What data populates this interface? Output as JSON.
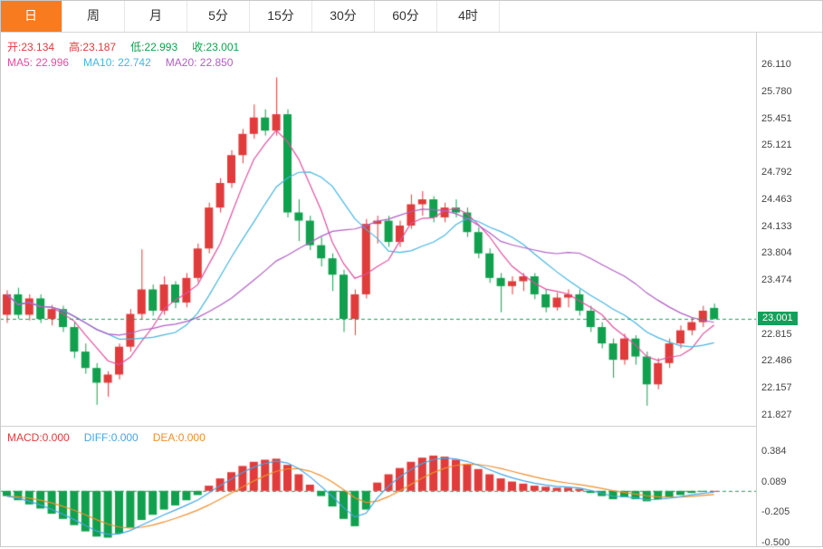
{
  "tabs": [
    {
      "label": "日",
      "active": true
    },
    {
      "label": "周",
      "active": false
    },
    {
      "label": "月",
      "active": false
    },
    {
      "label": "5分",
      "active": false
    },
    {
      "label": "15分",
      "active": false
    },
    {
      "label": "30分",
      "active": false
    },
    {
      "label": "60分",
      "active": false
    },
    {
      "label": "4时",
      "active": false
    }
  ],
  "ohlc_row": [
    {
      "text": "开:23.134",
      "color": "#e13b3b"
    },
    {
      "text": "高:23.187",
      "color": "#e13b3b"
    },
    {
      "text": "低:22.993",
      "color": "#11a04e"
    },
    {
      "text": "收:23.001",
      "color": "#11a04e"
    }
  ],
  "ma_row": [
    {
      "text": "MA5: 22.996",
      "color": "#e24f9f"
    },
    {
      "text": "MA10: 22.742",
      "color": "#45b6e0"
    },
    {
      "text": "MA20: 22.850",
      "color": "#b05fc5"
    }
  ],
  "macd_row": [
    {
      "text": "MACD:0.000",
      "color": "#e13b3b"
    },
    {
      "text": "DIFF:0.000",
      "color": "#45a6e8"
    },
    {
      "text": "DEA:0.000",
      "color": "#f08f2a"
    }
  ],
  "price_tag": {
    "text": "23.001",
    "bg": "#14a05a"
  },
  "colors": {
    "up": "#e13b3b",
    "down": "#11a04e",
    "ma5": "#e24f9f",
    "ma10": "#45b6e0",
    "ma20": "#b05fc5",
    "diff": "#45a6e8",
    "dea": "#f08f2a",
    "dashed": "#14a05a",
    "tab_active_bg": "#f87b20"
  },
  "chart_data": [
    {
      "type": "candlestick",
      "title": "日K线 (Daily candlestick)",
      "ohlc_last": {
        "open": 23.134,
        "high": 23.187,
        "low": 22.993,
        "close": 23.001
      },
      "ma_values": {
        "MA5": 22.996,
        "MA10": 22.742,
        "MA20": 22.85
      },
      "current_price_line": 23.001,
      "y_ticks": [
        26.11,
        25.78,
        25.451,
        25.121,
        24.792,
        24.463,
        24.133,
        23.804,
        23.474,
        22.815,
        22.486,
        22.157,
        21.827
      ],
      "y_range": [
        21.694,
        26.497
      ],
      "candles": [
        [
          23.05,
          23.35,
          22.95,
          23.3
        ],
        [
          23.3,
          23.38,
          23.0,
          23.05
        ],
        [
          23.05,
          23.3,
          22.98,
          23.25
        ],
        [
          23.25,
          23.3,
          22.95,
          23.0
        ],
        [
          23.0,
          23.17,
          22.92,
          23.12
        ],
        [
          23.12,
          23.16,
          22.84,
          22.9
        ],
        [
          22.9,
          22.96,
          22.52,
          22.6
        ],
        [
          22.6,
          22.7,
          22.33,
          22.4
        ],
        [
          22.4,
          22.46,
          21.95,
          22.22
        ],
        [
          22.22,
          22.36,
          22.05,
          22.32
        ],
        [
          22.32,
          22.7,
          22.26,
          22.66
        ],
        [
          22.66,
          23.12,
          22.6,
          23.06
        ],
        [
          23.06,
          23.85,
          23.0,
          23.36
        ],
        [
          23.36,
          23.42,
          23.04,
          23.1
        ],
        [
          23.1,
          23.52,
          23.05,
          23.42
        ],
        [
          23.42,
          23.46,
          23.13,
          23.2
        ],
        [
          23.2,
          23.56,
          23.14,
          23.5
        ],
        [
          23.5,
          23.92,
          23.45,
          23.86
        ],
        [
          23.86,
          24.42,
          23.8,
          24.36
        ],
        [
          24.36,
          24.72,
          24.3,
          24.66
        ],
        [
          24.66,
          25.06,
          24.6,
          25.0
        ],
        [
          25.0,
          25.32,
          24.9,
          25.26
        ],
        [
          25.26,
          25.62,
          25.2,
          25.46
        ],
        [
          25.46,
          25.56,
          25.24,
          25.3
        ],
        [
          25.3,
          25.95,
          25.24,
          25.5
        ],
        [
          25.5,
          25.56,
          24.24,
          24.3
        ],
        [
          24.3,
          24.46,
          23.95,
          24.2
        ],
        [
          24.2,
          24.26,
          23.84,
          23.9
        ],
        [
          23.9,
          24.0,
          23.64,
          23.74
        ],
        [
          23.74,
          23.8,
          23.34,
          23.54
        ],
        [
          23.54,
          23.6,
          22.84,
          23.0
        ],
        [
          23.0,
          23.36,
          22.8,
          23.3
        ],
        [
          23.3,
          24.22,
          23.25,
          24.16
        ],
        [
          24.16,
          24.26,
          23.92,
          24.2
        ],
        [
          24.2,
          24.26,
          23.88,
          23.94
        ],
        [
          23.94,
          24.2,
          23.88,
          24.14
        ],
        [
          24.14,
          24.52,
          24.1,
          24.4
        ],
        [
          24.4,
          24.56,
          24.26,
          24.46
        ],
        [
          24.46,
          24.5,
          24.18,
          24.24
        ],
        [
          24.24,
          24.42,
          24.18,
          24.36
        ],
        [
          24.36,
          24.46,
          24.24,
          24.3
        ],
        [
          24.3,
          24.36,
          24.0,
          24.06
        ],
        [
          24.06,
          24.12,
          23.74,
          23.8
        ],
        [
          23.8,
          23.86,
          23.44,
          23.5
        ],
        [
          23.5,
          23.56,
          23.08,
          23.4
        ],
        [
          23.4,
          23.52,
          23.3,
          23.46
        ],
        [
          23.46,
          23.56,
          23.34,
          23.52
        ],
        [
          23.52,
          23.56,
          23.24,
          23.3
        ],
        [
          23.3,
          23.36,
          23.08,
          23.14
        ],
        [
          23.14,
          23.32,
          23.1,
          23.26
        ],
        [
          23.26,
          23.36,
          23.14,
          23.3
        ],
        [
          23.3,
          23.36,
          23.04,
          23.1
        ],
        [
          23.1,
          23.16,
          22.84,
          22.9
        ],
        [
          22.9,
          22.96,
          22.64,
          22.7
        ],
        [
          22.7,
          22.76,
          22.28,
          22.5
        ],
        [
          22.5,
          22.82,
          22.44,
          22.76
        ],
        [
          22.76,
          22.8,
          22.44,
          22.54
        ],
        [
          22.54,
          22.6,
          21.94,
          22.2
        ],
        [
          22.2,
          22.52,
          22.14,
          22.46
        ],
        [
          22.46,
          22.76,
          22.4,
          22.7
        ],
        [
          22.7,
          22.92,
          22.64,
          22.86
        ],
        [
          22.86,
          23.02,
          22.8,
          22.96
        ],
        [
          22.96,
          23.16,
          22.9,
          23.1
        ],
        [
          23.134,
          23.187,
          22.993,
          23.001
        ]
      ]
    },
    {
      "type": "bar",
      "name": "MACD",
      "header_values": {
        "MACD": 0.0,
        "DIFF": 0.0,
        "DEA": 0.0
      },
      "y_ticks": [
        0.384,
        0.089,
        -0.205,
        -0.5
      ],
      "y_range": [
        -0.542,
        0.618
      ],
      "values": [
        -0.05,
        -0.09,
        -0.13,
        -0.17,
        -0.22,
        -0.27,
        -0.33,
        -0.39,
        -0.44,
        -0.45,
        -0.41,
        -0.35,
        -0.28,
        -0.23,
        -0.18,
        -0.14,
        -0.09,
        -0.04,
        0.05,
        0.12,
        0.18,
        0.24,
        0.28,
        0.3,
        0.31,
        0.25,
        0.16,
        0.06,
        -0.05,
        -0.15,
        -0.27,
        -0.34,
        -0.18,
        0.08,
        0.16,
        0.22,
        0.28,
        0.32,
        0.34,
        0.33,
        0.3,
        0.26,
        0.21,
        0.16,
        0.12,
        0.09,
        0.07,
        0.05,
        0.04,
        0.03,
        0.03,
        0.02,
        -0.02,
        -0.05,
        -0.08,
        -0.06,
        -0.08,
        -0.1,
        -0.08,
        -0.06,
        -0.04,
        -0.02,
        -0.01,
        0.0
      ]
    }
  ]
}
